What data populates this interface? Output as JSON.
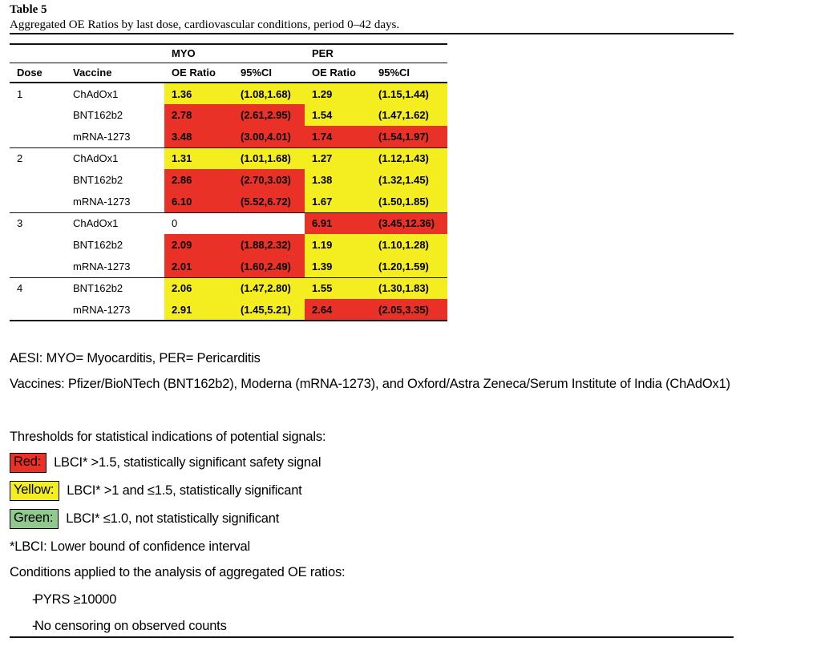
{
  "title": {
    "label": "Table 5",
    "caption": "Aggregated OE Ratios by last dose, cardiovascular conditions, period 0–42 days."
  },
  "colors": {
    "red": "#EA3127",
    "yellow": "#F4EE20",
    "green": "#8FC98E"
  },
  "table": {
    "group_headers": {
      "myo": "MYO",
      "per": "PER"
    },
    "columns": {
      "dose": "Dose",
      "vaccine": "Vaccine",
      "myo_oe": "OE Ratio",
      "myo_ci": "95%CI",
      "per_oe": "OE Ratio",
      "per_ci": "95%CI"
    },
    "rows": [
      {
        "dose": "1",
        "group_start": true,
        "vaccine": "ChAdOx1",
        "myo_oe": "1.36",
        "myo_ci": "(1.08,1.68)",
        "myo_color": "yellow",
        "per_oe": "1.29",
        "per_ci": "(1.15,1.44)",
        "per_color": "yellow"
      },
      {
        "dose": "",
        "group_start": false,
        "vaccine": "BNT162b2",
        "myo_oe": "2.78",
        "myo_ci": "(2.61,2.95)",
        "myo_color": "red",
        "per_oe": "1.54",
        "per_ci": "(1.47,1.62)",
        "per_color": "yellow"
      },
      {
        "dose": "",
        "group_start": false,
        "vaccine": "mRNA-1273",
        "myo_oe": "3.48",
        "myo_ci": "(3.00,4.01)",
        "myo_color": "red",
        "per_oe": "1.74",
        "per_ci": "(1.54,1.97)",
        "per_color": "red"
      },
      {
        "dose": "2",
        "group_start": true,
        "vaccine": "ChAdOx1",
        "myo_oe": "1.31",
        "myo_ci": "(1.01,1.68)",
        "myo_color": "yellow",
        "per_oe": "1.27",
        "per_ci": "(1.12,1.43)",
        "per_color": "yellow"
      },
      {
        "dose": "",
        "group_start": false,
        "vaccine": "BNT162b2",
        "myo_oe": "2.86",
        "myo_ci": "(2.70,3.03)",
        "myo_color": "red",
        "per_oe": "1.38",
        "per_ci": "(1.32,1.45)",
        "per_color": "yellow"
      },
      {
        "dose": "",
        "group_start": false,
        "vaccine": "mRNA-1273",
        "myo_oe": "6.10",
        "myo_ci": "(5.52,6.72)",
        "myo_color": "red",
        "per_oe": "1.67",
        "per_ci": "(1.50,1.85)",
        "per_color": "yellow"
      },
      {
        "dose": "3",
        "group_start": true,
        "vaccine": "ChAdOx1",
        "myo_oe": "0",
        "myo_ci": "",
        "myo_color": "none",
        "per_oe": "6.91",
        "per_ci": "(3.45,12.36)",
        "per_color": "red"
      },
      {
        "dose": "",
        "group_start": false,
        "vaccine": "BNT162b2",
        "myo_oe": "2.09",
        "myo_ci": "(1.88,2.32)",
        "myo_color": "red",
        "per_oe": "1.19",
        "per_ci": "(1.10,1.28)",
        "per_color": "yellow"
      },
      {
        "dose": "",
        "group_start": false,
        "vaccine": "mRNA-1273",
        "myo_oe": "2.01",
        "myo_ci": "(1.60,2.49)",
        "myo_color": "red",
        "per_oe": "1.39",
        "per_ci": "(1.20,1.59)",
        "per_color": "yellow"
      },
      {
        "dose": "4",
        "group_start": true,
        "vaccine": "BNT162b2",
        "myo_oe": "2.06",
        "myo_ci": "(1.47,2.80)",
        "myo_color": "yellow",
        "per_oe": "1.55",
        "per_ci": "(1.30,1.83)",
        "per_color": "yellow"
      },
      {
        "dose": "",
        "group_start": false,
        "vaccine": "mRNA-1273",
        "myo_oe": "2.91",
        "myo_ci": "(1.45,5.21)",
        "myo_color": "yellow",
        "per_oe": "2.64",
        "per_ci": "(2.05,3.35)",
        "per_color": "red"
      }
    ]
  },
  "notes": {
    "aesi": "AESI: MYO= Myocarditis, PER= Pericarditis",
    "vaccines": "Vaccines: Pfizer/BioNTech (BNT162b2), Moderna (mRNA-1273), and Oxford/Astra Zeneca/Serum Institute of India (ChAdOx1)",
    "lbci": "*LBCI: Lower bound of confidence interval",
    "conditions_title": "Conditions applied to the analysis of aggregated OE ratios:",
    "bullet_dash": "-",
    "conditions": [
      "PYRS ≥10000",
      "No censoring on observed counts"
    ]
  },
  "legend": {
    "title": "Thresholds for statistical indications of potential signals:",
    "items": [
      {
        "label": "Red:",
        "color": "#EA3127",
        "text": "LBCI* >1.5, statistically significant safety signal"
      },
      {
        "label": "Yellow:",
        "color": "#F4EE20",
        "text": "LBCI* >1 and ≤1.5, statistically significant"
      },
      {
        "label": "Green:",
        "color": "#8FC98E",
        "text": "LBCI* ≤1.0, not statistically significant"
      }
    ]
  }
}
